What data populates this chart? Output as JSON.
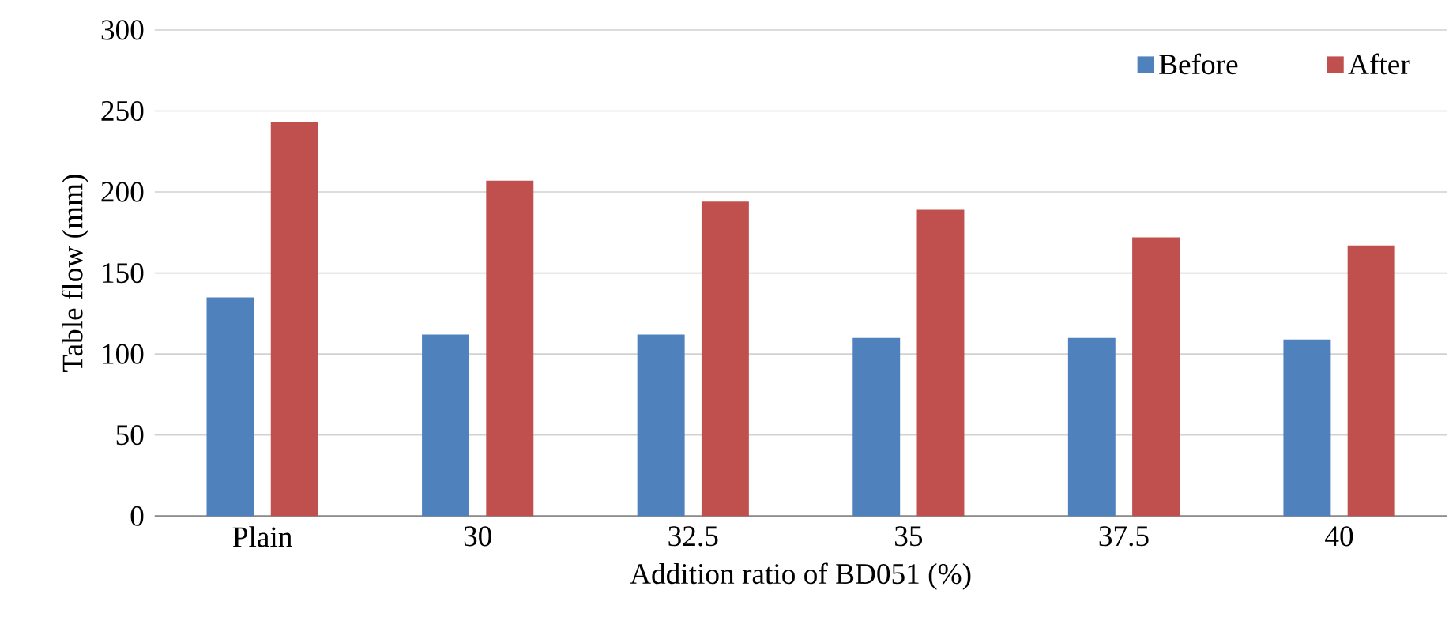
{
  "chart_data": {
    "type": "bar",
    "xlabel": "Addition ratio of BD051 (%)",
    "ylabel": "Table flow (mm)",
    "categories": [
      "Plain",
      "30",
      "32.5",
      "35",
      "37.5",
      "40"
    ],
    "series": [
      {
        "name": "Before",
        "color": "#4f81bd",
        "values": [
          135,
          112,
          112,
          110,
          110,
          109
        ]
      },
      {
        "name": "After",
        "color": "#c0504d",
        "values": [
          243,
          207,
          194,
          189,
          172,
          167
        ]
      }
    ],
    "ylim": [
      0,
      300
    ],
    "yticks": [
      0,
      50,
      100,
      150,
      200,
      250,
      300
    ],
    "grid": "y",
    "legend": "top right"
  }
}
